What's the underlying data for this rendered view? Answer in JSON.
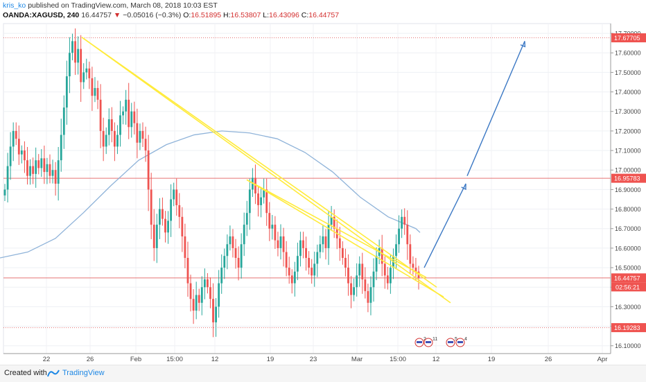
{
  "header": {
    "username": "kris_ko",
    "published_text": "published on TradingView.com, March 08, 2018 10:03 EST",
    "symbol": "OANDA:XAGUSD, 240",
    "last": "16.44757",
    "change": "−0.05016 (−0.3%)",
    "o_label": "O:",
    "o_value": "16.51895",
    "h_label": "H:",
    "h_value": "16.53807",
    "l_label": "L:",
    "l_value": "16.43096",
    "c_label": "C:",
    "c_value": "16.44757"
  },
  "footer": {
    "created_with": "Created with",
    "brand": "TradingView"
  },
  "colors": {
    "up": "#26a69a",
    "down": "#ef5350",
    "trend": "#ffeb3b",
    "ma": "#8fb3d9",
    "arrow": "#3b78c4",
    "level": "#e57373"
  },
  "chart_data": {
    "type": "candlestick",
    "symbol": "OANDA:XAGUSD",
    "interval": "240",
    "y_ticks": [
      "16.10000",
      "16.20000",
      "16.30000",
      "16.40000",
      "16.50000",
      "16.60000",
      "16.70000",
      "16.80000",
      "16.90000",
      "17.00000",
      "17.10000",
      "17.20000",
      "17.30000",
      "17.40000",
      "17.50000",
      "17.60000",
      "17.70000"
    ],
    "x_ticks": [
      "22",
      "26",
      "Feb",
      "15:00",
      "12",
      "19",
      "23",
      "Mar",
      "15:00",
      "12",
      "19",
      "26",
      "Apr"
    ],
    "ylim": [
      16.06,
      17.75
    ],
    "level_labels": [
      {
        "value": 17.67705,
        "text": "17.67705",
        "style": "dotted"
      },
      {
        "value": 16.95783,
        "text": "16.95783",
        "style": "solid"
      },
      {
        "value": 16.44757,
        "text": "16.44757",
        "style": "solid"
      },
      {
        "value": 16.19283,
        "text": "16.19283",
        "style": "dotted"
      }
    ],
    "countdown": "02:56:21",
    "event_badges": [
      "2",
      "11",
      "5",
      "4"
    ],
    "closes": [
      16.9,
      17.02,
      17.12,
      17.2,
      17.16,
      17.08,
      17.1,
      17.05,
      16.97,
      17.02,
      16.98,
      17.05,
      17.01,
      17.06,
      16.99,
      17.03,
      16.97,
      17.0,
      16.93,
      17.05,
      17.18,
      17.32,
      17.48,
      17.6,
      17.66,
      17.55,
      17.62,
      17.45,
      17.5,
      17.52,
      17.47,
      17.38,
      17.42,
      17.36,
      17.2,
      17.12,
      17.18,
      17.26,
      17.2,
      17.12,
      17.18,
      17.28,
      17.3,
      17.36,
      17.22,
      17.3,
      17.24,
      17.14,
      17.2,
      17.16,
      17.1,
      16.9,
      16.72,
      16.6,
      16.72,
      16.8,
      16.75,
      16.68,
      16.74,
      16.85,
      16.9,
      16.82,
      16.76,
      16.66,
      16.55,
      16.42,
      16.34,
      16.28,
      16.36,
      16.32,
      16.4,
      16.44,
      16.4,
      16.34,
      16.22,
      16.3,
      16.42,
      16.5,
      16.56,
      16.62,
      16.66,
      16.6,
      16.55,
      16.5,
      16.62,
      16.72,
      16.78,
      16.9,
      16.96,
      16.88,
      16.82,
      16.86,
      16.9,
      16.78,
      16.7,
      16.72,
      16.64,
      16.6,
      16.66,
      16.58,
      16.5,
      16.46,
      16.42,
      16.48,
      16.56,
      16.64,
      16.6,
      16.55,
      16.5,
      16.46,
      16.52,
      16.58,
      16.62,
      16.66,
      16.6,
      16.72,
      16.76,
      16.7,
      16.65,
      16.6,
      16.55,
      16.5,
      16.42,
      16.36,
      16.4,
      16.46,
      16.52,
      16.44,
      16.38,
      16.32,
      16.4,
      16.48,
      16.56,
      16.6,
      16.52,
      16.46,
      16.42,
      16.5,
      16.56,
      16.62,
      16.7,
      16.76,
      16.72,
      16.62,
      16.52,
      16.5,
      16.48,
      16.44757
    ],
    "ma": [
      [
        0,
        16.55
      ],
      [
        40,
        16.58
      ],
      [
        80,
        16.65
      ],
      [
        120,
        16.78
      ],
      [
        160,
        16.92
      ],
      [
        200,
        17.05
      ],
      [
        240,
        17.13
      ],
      [
        280,
        17.18
      ],
      [
        320,
        17.2
      ],
      [
        360,
        17.19
      ],
      [
        400,
        17.16
      ],
      [
        440,
        17.09
      ],
      [
        480,
        16.99
      ],
      [
        520,
        16.86
      ],
      [
        560,
        16.76
      ],
      [
        600,
        16.7
      ],
      [
        606,
        16.68
      ]
    ],
    "trendlines": [
      [
        [
          118,
          17.68
        ],
        [
          650,
          16.32
        ]
      ],
      [
        [
          118,
          17.68
        ],
        [
          630,
          16.4
        ]
      ],
      [
        [
          356,
          16.95
        ],
        [
          640,
          16.35
        ]
      ],
      [
        [
          356,
          16.95
        ],
        [
          615,
          16.45
        ]
      ]
    ],
    "projection": [
      [
        612,
        16.5
      ],
      [
        672,
        16.93
      ],
      [
        674,
        16.97
      ],
      [
        757,
        17.66
      ]
    ]
  }
}
